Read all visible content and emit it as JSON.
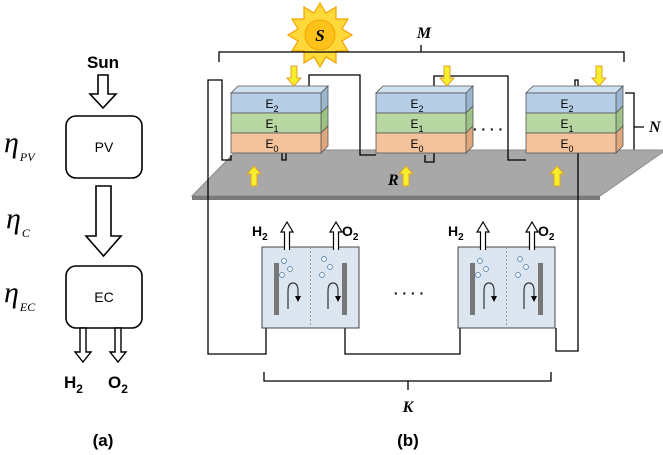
{
  "panel_a": {
    "sun_label": "Sun",
    "pv_label": "PV",
    "ec_label": "EC",
    "eta_symbol": "η",
    "eta_pv_sub": "PV",
    "eta_c_sub": "C",
    "eta_ec_sub": "EC",
    "h2_main": "H",
    "h2_sub": "2",
    "o2_main": "O",
    "o2_sub": "2",
    "caption": "(a)"
  },
  "panel_b": {
    "sun_letter": "S",
    "label_m": "M",
    "label_n": "N",
    "label_r": "R",
    "label_k": "K",
    "layer_e": "E",
    "layer_subs": [
      "2",
      "1",
      "0"
    ],
    "h2_main": "H",
    "h2_sub": "2",
    "o2_main": "O",
    "o2_sub": "2",
    "dots_modules": "· · · ·",
    "dots_cells": "· · · ·",
    "caption": "(b)"
  },
  "colors": {
    "layer_top": "#b7cfe6",
    "layer_mid": "#b9d7a3",
    "layer_bot": "#f4c39c",
    "platform": "#a8a8a8",
    "arrow_fill": "#f6ef2a",
    "arrow_stroke": "#e0a02c",
    "cell_fill": "#dce6f0",
    "sun_fill": "#ffd93a"
  }
}
